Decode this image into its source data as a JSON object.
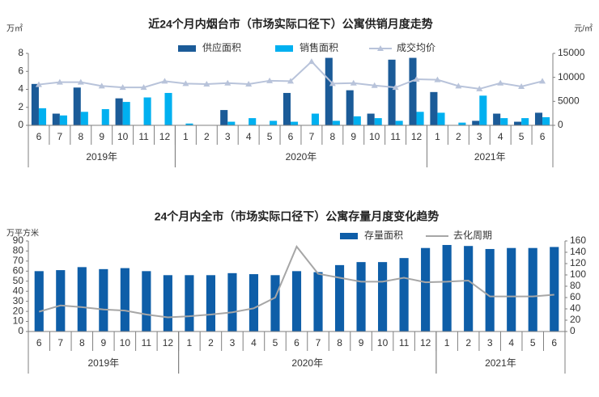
{
  "chart_data": [
    {
      "type": "bar",
      "title": "近24个月内烟台市（市场实际口径下）公寓供销月度走势",
      "y_unit": "万㎡",
      "y2_unit": "元/㎡",
      "categories": [
        "6",
        "7",
        "8",
        "9",
        "10",
        "11",
        "12",
        "1",
        "2",
        "3",
        "4",
        "5",
        "6",
        "7",
        "8",
        "9",
        "10",
        "11",
        "12",
        "1",
        "2",
        "3",
        "4",
        "5",
        "6"
      ],
      "category_groups": [
        {
          "label": "2019年",
          "size": 7
        },
        {
          "label": "2020年",
          "size": 12
        },
        {
          "label": "2021年",
          "size": 6
        }
      ],
      "series": [
        {
          "name": "供应面积",
          "type": "bar",
          "color": "#1b5b98",
          "values": [
            4.6,
            1.3,
            4.2,
            0,
            3.0,
            0,
            0,
            0,
            0,
            1.7,
            0,
            0,
            3.6,
            0,
            7.5,
            3.9,
            1.3,
            7.3,
            7.5,
            3.7,
            0,
            0.5,
            1.3,
            0.4,
            1.4
          ]
        },
        {
          "name": "销售面积",
          "type": "bar",
          "color": "#00b0f0",
          "values": [
            1.9,
            1.1,
            1.5,
            1.8,
            2.6,
            3.1,
            3.6,
            0.2,
            0,
            0.4,
            0.8,
            0.5,
            0.4,
            1.3,
            0.5,
            1.0,
            0.8,
            0.5,
            1.5,
            1.4,
            0.3,
            3.3,
            0.8,
            0.8,
            0.9
          ]
        },
        {
          "name": "成交均价",
          "type": "line",
          "axis": "y2",
          "color": "#b8c3da",
          "marker": "triangle",
          "values": [
            8500,
            9000,
            9000,
            8200,
            7900,
            7900,
            9200,
            8700,
            8600,
            8800,
            8600,
            9300,
            9200,
            13300,
            8700,
            8800,
            8300,
            7900,
            9600,
            9500,
            8200,
            7600,
            8800,
            8100,
            9200
          ]
        }
      ],
      "ylim": [
        0,
        8
      ],
      "yticks": [
        0,
        2,
        4,
        6,
        8
      ],
      "y2lim": [
        0,
        15000
      ],
      "y2ticks": [
        0,
        5000,
        10000,
        15000
      ]
    },
    {
      "type": "bar",
      "title": "24个月内全市（市场实际口径下）公寓存量月度变化趋势",
      "y_unit": "万平方米",
      "categories": [
        "6",
        "7",
        "8",
        "9",
        "10",
        "11",
        "12",
        "1",
        "2",
        "3",
        "4",
        "5",
        "6",
        "7",
        "8",
        "9",
        "10",
        "11",
        "12",
        "1",
        "2",
        "3",
        "4",
        "5",
        "6"
      ],
      "category_groups": [
        {
          "label": "2019年",
          "size": 7
        },
        {
          "label": "2020年",
          "size": 12
        },
        {
          "label": "2021年",
          "size": 6
        }
      ],
      "series": [
        {
          "name": "存量面积",
          "type": "bar",
          "color": "#0e5ea8",
          "values": [
            60,
            61,
            64,
            62,
            63,
            60,
            56,
            56,
            56,
            58,
            57,
            56,
            60,
            59,
            66,
            69,
            69,
            73,
            83,
            86,
            85,
            82,
            83,
            83,
            84
          ]
        },
        {
          "name": "去化周期",
          "type": "line",
          "axis": "y2",
          "color": "#a6a6a6",
          "values": [
            35,
            46,
            43,
            39,
            37,
            30,
            25,
            27,
            30,
            34,
            41,
            60,
            150,
            102,
            95,
            88,
            88,
            95,
            87,
            88,
            90,
            62,
            62,
            62,
            65
          ]
        }
      ],
      "ylim": [
        0,
        90
      ],
      "yticks": [
        0,
        10,
        20,
        30,
        40,
        50,
        60,
        70,
        80,
        90
      ],
      "y2lim": [
        0,
        160
      ],
      "y2ticks": [
        0,
        20,
        40,
        60,
        80,
        100,
        120,
        140,
        160
      ]
    }
  ]
}
